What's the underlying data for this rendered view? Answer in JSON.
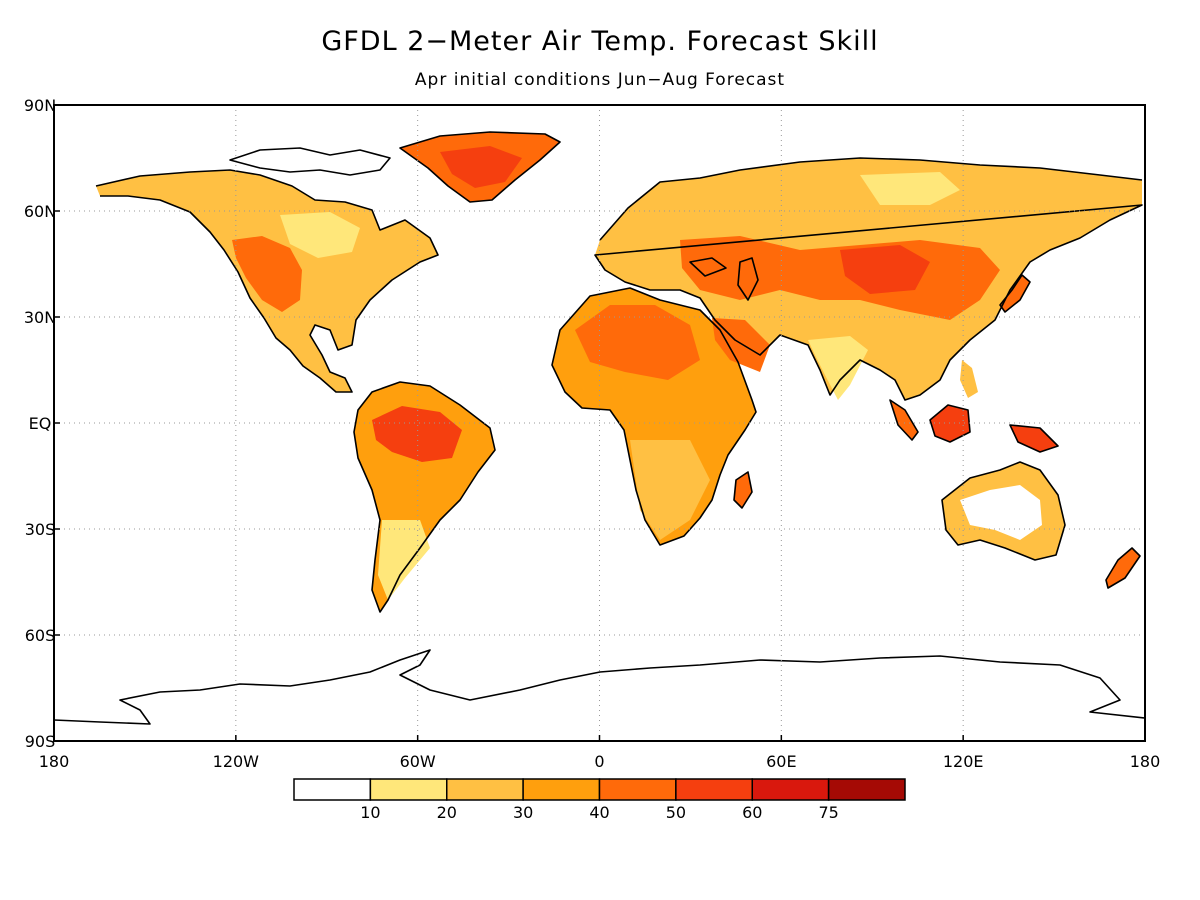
{
  "title": "GFDL 2−Meter Air Temp. Forecast Skill",
  "subtitle": "Apr initial conditions   Jun−Aug Forecast",
  "map": {
    "lon_range": [
      -180,
      180
    ],
    "lat_range": [
      -90,
      90
    ],
    "grid": "dotted",
    "lat_ticks": [
      {
        "value": 90,
        "label": "90N"
      },
      {
        "value": 60,
        "label": "60N"
      },
      {
        "value": 30,
        "label": "30N"
      },
      {
        "value": 0,
        "label": "EQ"
      },
      {
        "value": -30,
        "label": "30S"
      },
      {
        "value": -60,
        "label": "60S"
      },
      {
        "value": -90,
        "label": "90S"
      }
    ],
    "lon_ticks": [
      {
        "value": -180,
        "label": "180"
      },
      {
        "value": -120,
        "label": "120W"
      },
      {
        "value": -60,
        "label": "60W"
      },
      {
        "value": 0,
        "label": "0"
      },
      {
        "value": 60,
        "label": "60E"
      },
      {
        "value": 120,
        "label": "120E"
      },
      {
        "value": 180,
        "label": "180"
      }
    ]
  },
  "colorbar": {
    "bins": [
      {
        "color": "#ffffff"
      },
      {
        "color": "#ffe77a"
      },
      {
        "color": "#ffc043"
      },
      {
        "color": "#ff9f0d"
      },
      {
        "color": "#ff6a0a"
      },
      {
        "color": "#f53f0f"
      },
      {
        "color": "#d9180d"
      },
      {
        "color": "#a50a05"
      }
    ],
    "labels": [
      "10",
      "20",
      "30",
      "40",
      "50",
      "60",
      "75"
    ]
  }
}
